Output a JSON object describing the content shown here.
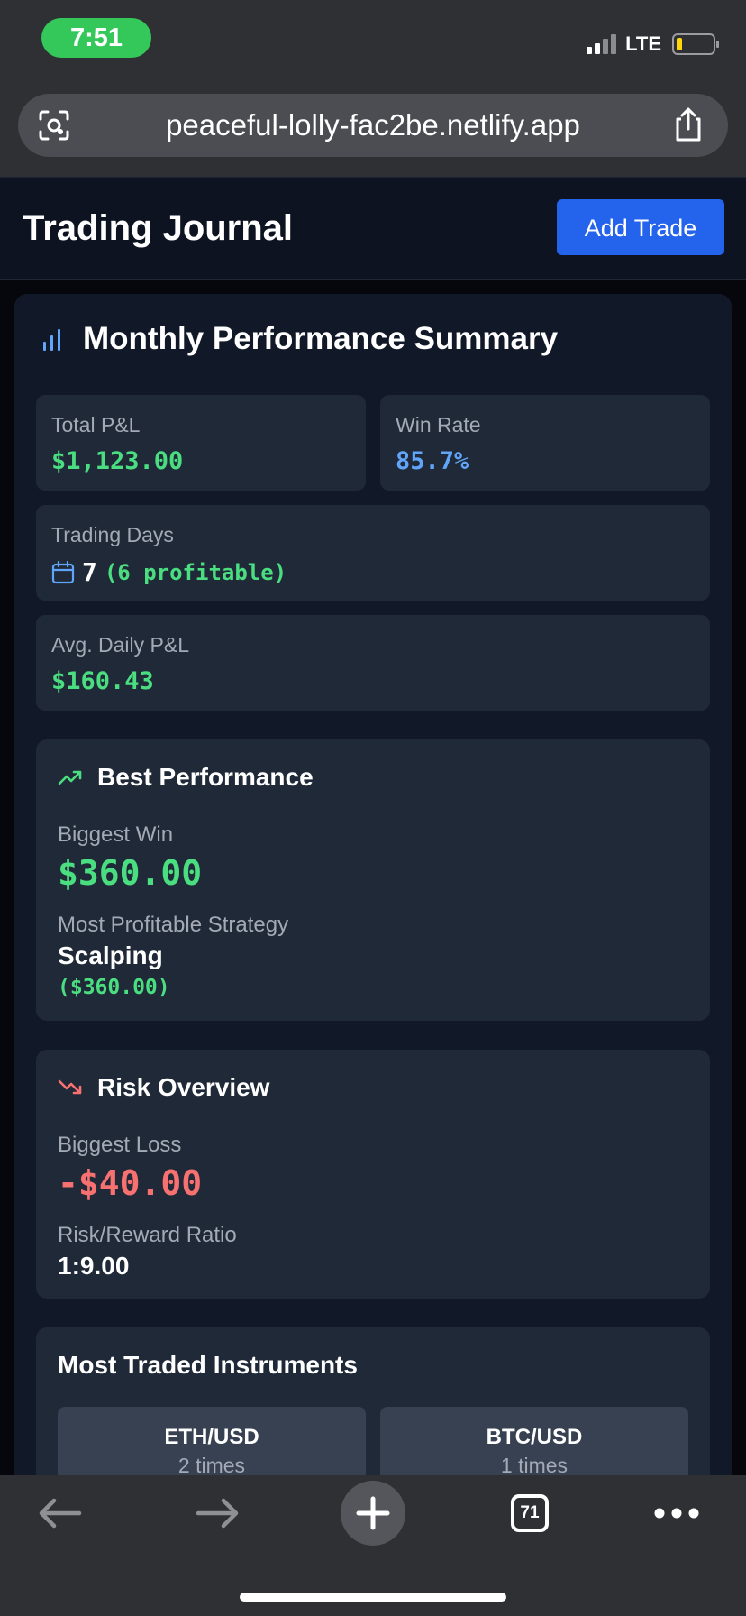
{
  "status_bar": {
    "time": "7:51",
    "network": "LTE",
    "battery_color": "#ffd60a",
    "time_pill_color": "#34c759"
  },
  "browser": {
    "url": "peaceful-lolly-fac2be.netlify.app",
    "tab_count": "71"
  },
  "header": {
    "title": "Trading Journal",
    "add_button": "Add Trade",
    "accent": "#2463eb"
  },
  "summary": {
    "title": "Monthly Performance Summary",
    "total_pl_label": "Total P&L",
    "total_pl_value": "$1,123.00",
    "win_rate_label": "Win Rate",
    "win_rate_value": "85.7%",
    "trading_days_label": "Trading Days",
    "trading_days_value": "7",
    "trading_days_profitable": "(6 profitable)",
    "avg_daily_label": "Avg. Daily P&L",
    "avg_daily_value": "$160.43"
  },
  "best": {
    "title": "Best Performance",
    "biggest_win_label": "Biggest Win",
    "biggest_win_value": "$360.00",
    "strategy_label": "Most Profitable Strategy",
    "strategy_name": "Scalping",
    "strategy_value": "($360.00)"
  },
  "risk": {
    "title": "Risk Overview",
    "biggest_loss_label": "Biggest Loss",
    "biggest_loss_value": "-$40.00",
    "ratio_label": "Risk/Reward Ratio",
    "ratio_value": "1:9.00"
  },
  "instruments": {
    "title": "Most Traded Instruments",
    "items": [
      {
        "name": "ETH/USD",
        "count": "2 times"
      },
      {
        "name": "BTC/USD",
        "count": "1 times"
      }
    ]
  },
  "colors": {
    "positive": "#4ade80",
    "negative": "#f87171",
    "info": "#60a5fa"
  }
}
